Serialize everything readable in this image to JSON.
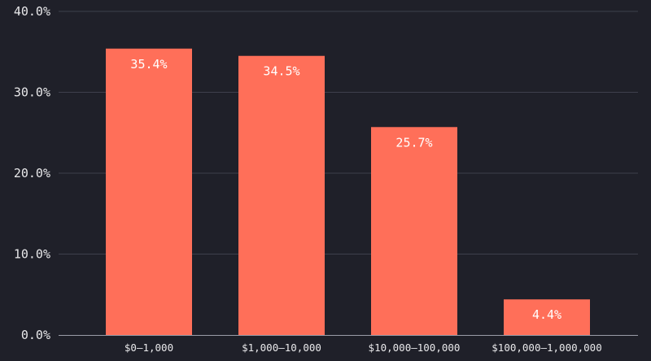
{
  "colors": {
    "background": "#1f2029",
    "bar": "#ff6f59",
    "grid": "#3e404c",
    "axis": "#9a9ca8",
    "text": "#e8e8ea",
    "label": "#ffffff"
  },
  "chart_data": {
    "type": "bar",
    "title": "",
    "xlabel": "",
    "ylabel": "",
    "categories": [
      "$0–1,000",
      "$1,000–10,000",
      "$10,000–100,000",
      "$100,000–1,000,000"
    ],
    "values": [
      35.4,
      34.5,
      25.7,
      4.4
    ],
    "data_labels": [
      "35.4%",
      "34.5%",
      "25.7%",
      "4.4%"
    ],
    "ylim": [
      0,
      40
    ],
    "yticks": [
      0,
      10,
      20,
      30,
      40
    ],
    "ytick_labels": [
      "0.0%",
      "10.0%",
      "20.0%",
      "30.0%",
      "40.0%"
    ],
    "grid": true,
    "legend": "none"
  }
}
